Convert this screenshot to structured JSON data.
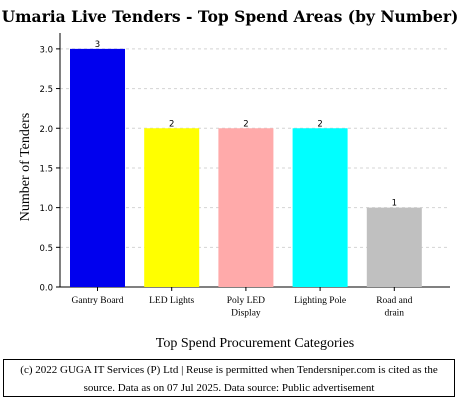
{
  "chart_data": {
    "type": "bar",
    "title": "Umaria Live Tenders - Top Spend Areas (by Number)",
    "xlabel": "Top Spend Procurement Categories",
    "ylabel": "Number of Tenders",
    "categories": [
      "Gantry Board",
      "LED Lights",
      "Poly LED Display",
      "Lighting Pole",
      "Road and drain"
    ],
    "category_lines": [
      [
        "Gantry Board"
      ],
      [
        "LED Lights"
      ],
      [
        "Poly LED",
        "Display"
      ],
      [
        "Lighting Pole"
      ],
      [
        "Road and",
        "drain"
      ]
    ],
    "values": [
      3,
      2,
      2,
      2,
      1
    ],
    "data_labels": [
      "3",
      "2",
      "2",
      "2",
      "1"
    ],
    "colors": [
      "#0000ee",
      "#ffff00",
      "#ffaaaa",
      "#00ffff",
      "#c0c0c0"
    ],
    "ylim": [
      0,
      3.2
    ],
    "yticks": [
      "0.0",
      "0.5",
      "1.0",
      "1.5",
      "2.0",
      "2.5",
      "3.0"
    ],
    "grid": true,
    "legend": "none"
  },
  "footer": {
    "line1": "(c) 2022 GUGA IT Services (P) Ltd | Reuse is permitted when Tendersniper.com is cited as the",
    "line2": "source. Data as on 07 Jul 2025. Data source: Public advertisement"
  }
}
